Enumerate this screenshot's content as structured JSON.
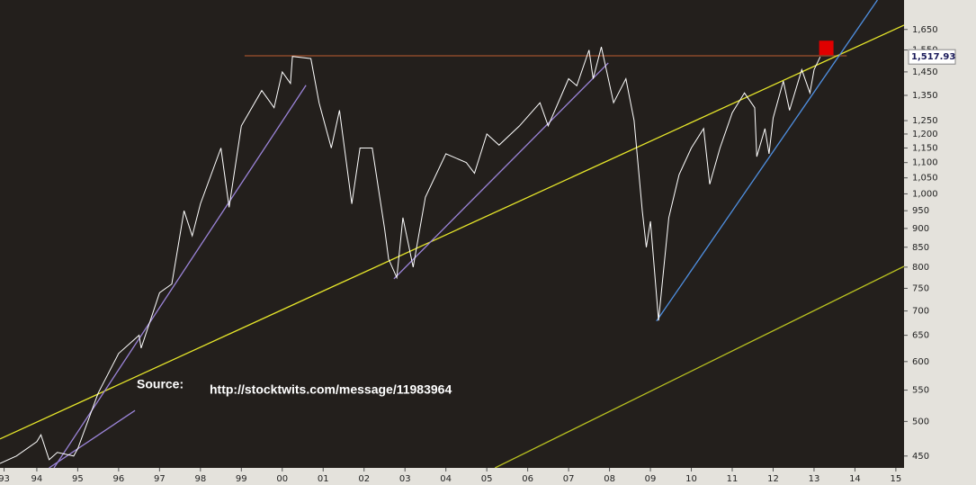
{
  "chart_data": {
    "type": "line",
    "log_y": true,
    "background": "#231f1c",
    "x": [
      1993.1,
      1993.5,
      1994.0,
      1994.1,
      1994.3,
      1994.5,
      1994.9,
      1995.0,
      1995.5,
      1996.0,
      1996.5,
      1996.55,
      1997.0,
      1997.3,
      1997.6,
      1997.8,
      1998.0,
      1998.5,
      1998.7,
      1999.0,
      1999.5,
      1999.8,
      2000.0,
      2000.2,
      2000.25,
      2000.7,
      2000.9,
      2001.2,
      2001.4,
      2001.7,
      2001.9,
      2002.2,
      2002.5,
      2002.6,
      2002.8,
      2002.95,
      2003.2,
      2003.5,
      2004.0,
      2004.5,
      2004.7,
      2005.0,
      2005.3,
      2005.8,
      2006.3,
      2006.5,
      2007.0,
      2007.2,
      2007.5,
      2007.6,
      2007.8,
      2008.1,
      2008.4,
      2008.6,
      2008.8,
      2008.9,
      2009.0,
      2009.2,
      2009.45,
      2009.7,
      2010.0,
      2010.3,
      2010.45,
      2010.7,
      2011.0,
      2011.3,
      2011.55,
      2011.6,
      2011.8,
      2011.9,
      2012.0,
      2012.25,
      2012.4,
      2012.7,
      2012.9,
      2013.0,
      2013.15
    ],
    "series": [
      {
        "color": "#ffffff",
        "values": [
          440,
          450,
          470,
          480,
          445,
          455,
          450,
          460,
          545,
          615,
          650,
          625,
          740,
          760,
          950,
          880,
          970,
          1150,
          960,
          1230,
          1370,
          1300,
          1450,
          1400,
          1520,
          1510,
          1320,
          1150,
          1290,
          970,
          1150,
          1150,
          900,
          820,
          775,
          930,
          800,
          990,
          1130,
          1100,
          1065,
          1200,
          1160,
          1230,
          1320,
          1230,
          1420,
          1390,
          1550,
          1420,
          1565,
          1320,
          1420,
          1250,
          950,
          850,
          920,
          680,
          930,
          1060,
          1150,
          1220,
          1030,
          1150,
          1280,
          1360,
          1300,
          1120,
          1220,
          1130,
          1260,
          1410,
          1290,
          1460,
          1360,
          1460,
          1517.93
        ]
      }
    ],
    "last_label": {
      "value": 1517.93,
      "label": "1,517.93"
    },
    "trendlines": [
      {
        "color": "#a0522d",
        "x": [
          1999.08,
          2013.8
        ],
        "values": [
          1523,
          1523
        ]
      },
      {
        "color": "#e6e62a",
        "x": [
          1993.1,
          2015.2
        ],
        "values": [
          474,
          1672
        ]
      },
      {
        "color": "#b8c020",
        "x": [
          2005.2,
          2015.2
        ],
        "values": [
          434,
          802
        ]
      },
      {
        "color": "#9b84d8",
        "x": [
          1994.42,
          2000.58
        ],
        "values": [
          434,
          1392
        ]
      },
      {
        "color": "#9b84d8",
        "x": [
          1994.3,
          1996.4
        ],
        "values": [
          434,
          517
        ]
      },
      {
        "color": "#9b84d8",
        "x": [
          2002.73,
          2007.97
        ],
        "values": [
          772,
          1490
        ]
      },
      {
        "color": "#4f8fe0",
        "x": [
          2009.15,
          2014.55
        ],
        "values": [
          679,
          1805
        ]
      }
    ],
    "marker": {
      "x": 2013.3,
      "value": 1560,
      "color": "#e00000"
    },
    "annotations": [
      "Source:",
      "http://stocktwits.com/message/11983964"
    ],
    "xlim": [
      1993.1,
      2015.2
    ],
    "ylim": [
      434,
      1805
    ],
    "xticks": [
      {
        "value": 1993.2,
        "label": "93"
      },
      {
        "value": 1994,
        "label": "94"
      },
      {
        "value": 1995,
        "label": "95"
      },
      {
        "value": 1996,
        "label": "96"
      },
      {
        "value": 1997,
        "label": "97"
      },
      {
        "value": 1998,
        "label": "98"
      },
      {
        "value": 1999,
        "label": "99"
      },
      {
        "value": 2000,
        "label": "00"
      },
      {
        "value": 2001,
        "label": "01"
      },
      {
        "value": 2002,
        "label": "02"
      },
      {
        "value": 2003,
        "label": "03"
      },
      {
        "value": 2004,
        "label": "04"
      },
      {
        "value": 2005,
        "label": "05"
      },
      {
        "value": 2006,
        "label": "06"
      },
      {
        "value": 2007,
        "label": "07"
      },
      {
        "value": 2008,
        "label": "08"
      },
      {
        "value": 2009,
        "label": "09"
      },
      {
        "value": 2010,
        "label": "10"
      },
      {
        "value": 2011,
        "label": "11"
      },
      {
        "value": 2012,
        "label": "12"
      },
      {
        "value": 2013,
        "label": "13"
      },
      {
        "value": 2014,
        "label": "14"
      },
      {
        "value": 2015,
        "label": "15"
      }
    ],
    "yticks": [
      450,
      500,
      550,
      600,
      650,
      700,
      750,
      800,
      850,
      900,
      950,
      {
        "value": 1000,
        "label": "1,000"
      },
      {
        "value": 1050,
        "label": "1,050"
      },
      {
        "value": 1100,
        "label": "1,100"
      },
      {
        "value": 1150,
        "label": "1,150"
      },
      {
        "value": 1200,
        "label": "1,200"
      },
      {
        "value": 1250,
        "label": "1,250"
      },
      {
        "value": 1350,
        "label": "1,350"
      },
      {
        "value": 1450,
        "label": "1,450"
      },
      {
        "value": 1550,
        "label": "1,550"
      },
      {
        "value": 1650,
        "label": "1,650"
      }
    ]
  }
}
